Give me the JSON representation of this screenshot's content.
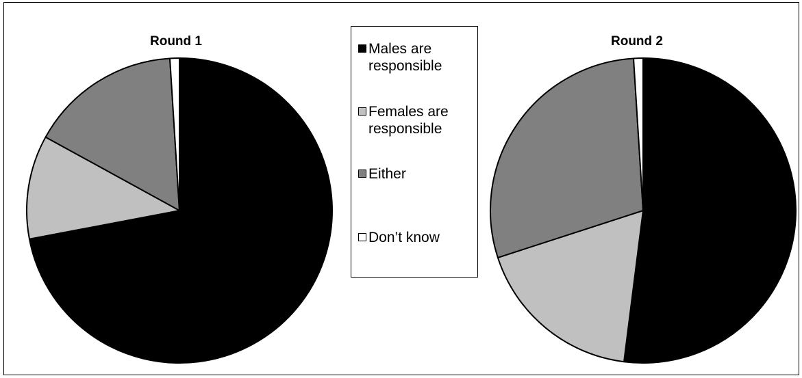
{
  "chart_data": [
    {
      "type": "pie",
      "title": "Round 1",
      "categories": [
        "Males are responsible",
        "Females are responsible",
        "Either",
        "Don't know"
      ],
      "values": [
        72,
        11,
        16,
        1
      ],
      "colors": [
        "#000000",
        "#c0c0c0",
        "#808080",
        "#ffffff"
      ]
    },
    {
      "type": "pie",
      "title": "Round 2",
      "categories": [
        "Males are responsible",
        "Females are responsible",
        "Either",
        "Don't know"
      ],
      "values": [
        52,
        18,
        29,
        1
      ],
      "colors": [
        "#000000",
        "#c0c0c0",
        "#808080",
        "#ffffff"
      ]
    }
  ],
  "legend": {
    "items": [
      {
        "label": "Males are responsible",
        "color": "#000000"
      },
      {
        "label": "Females are responsible",
        "color": "#c0c0c0"
      },
      {
        "label": "Either",
        "color": "#808080"
      },
      {
        "label": "Don’t know",
        "color": "#ffffff"
      }
    ]
  }
}
